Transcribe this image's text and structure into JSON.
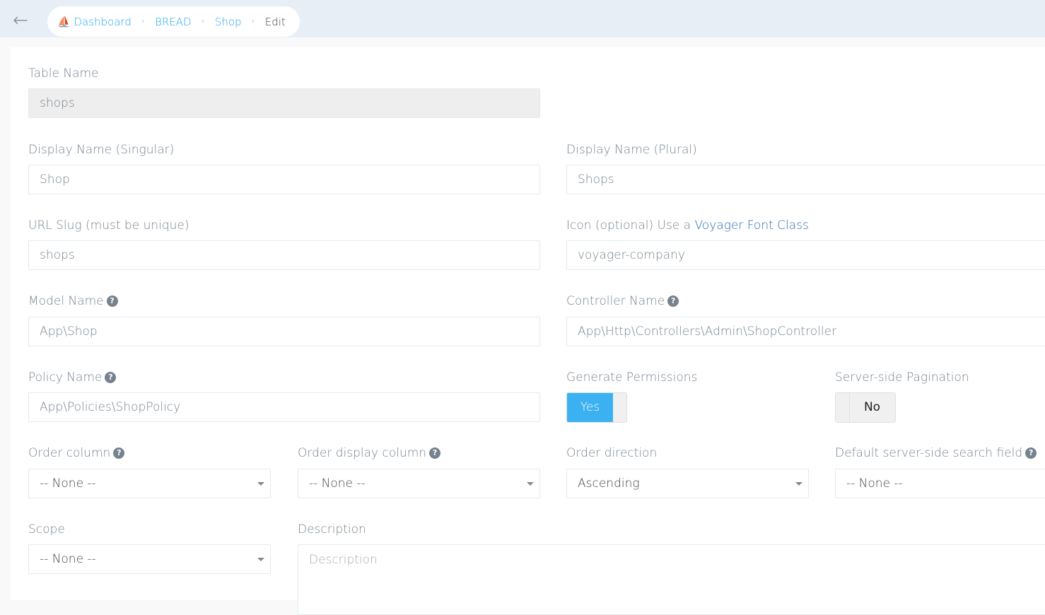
{
  "breadcrumb": {
    "items": [
      "Dashboard",
      "BREAD",
      "Shop"
    ],
    "current": "Edit"
  },
  "form": {
    "table_name": {
      "label": "Table Name",
      "value": "shops"
    },
    "display_singular": {
      "label": "Display Name (Singular)",
      "value": "Shop"
    },
    "display_plural": {
      "label": "Display Name (Plural)",
      "value": "Shops"
    },
    "slug": {
      "label": "URL Slug (must be unique)",
      "value": "shops"
    },
    "icon": {
      "label_prefix": "Icon (optional) Use a",
      "label_link": "Voyager Font Class",
      "value": "voyager-company"
    },
    "model": {
      "label": "Model Name",
      "value": "App\\Shop"
    },
    "controller": {
      "label": "Controller Name",
      "value": "App\\Http\\Controllers\\Admin\\ShopController"
    },
    "policy": {
      "label": "Policy Name",
      "value": "App\\Policies\\ShopPolicy"
    },
    "permissions": {
      "label": "Generate Permissions",
      "value": "Yes"
    },
    "pagination": {
      "label": "Server-side Pagination",
      "value": "No"
    },
    "order_column": {
      "label": "Order column",
      "value": "-- None --"
    },
    "order_display": {
      "label": "Order display column",
      "value": "-- None --"
    },
    "order_direction": {
      "label": "Order direction",
      "value": "Ascending"
    },
    "search_field": {
      "label": "Default server-side search field",
      "value": "-- None --"
    },
    "scope": {
      "label": "Scope",
      "value": "-- None --"
    },
    "description": {
      "label": "Description",
      "placeholder": "Description"
    }
  },
  "colors": {
    "accent": "#22a7f0",
    "toggle_on": "#3bb1f1"
  }
}
